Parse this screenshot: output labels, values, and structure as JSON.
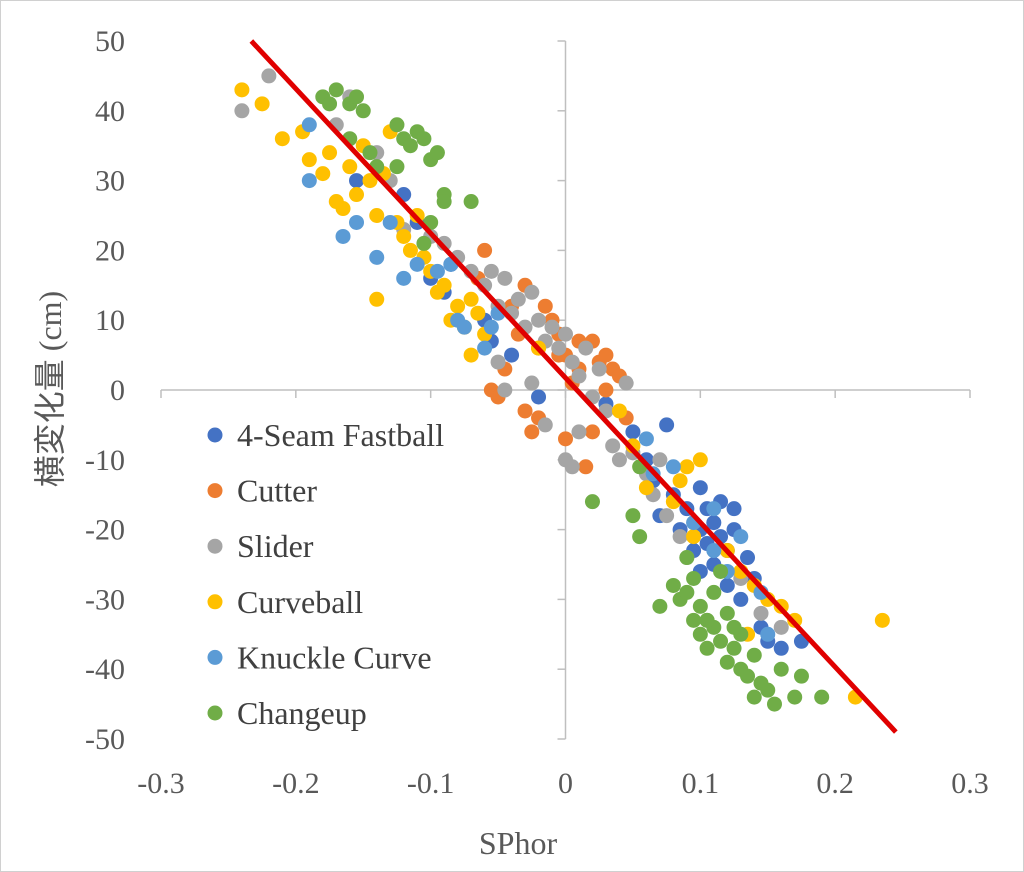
{
  "chart_data": {
    "type": "scatter",
    "xlabel": "SPhor",
    "ylabel": "横変化量 (cm)",
    "xlim": [
      -0.3,
      0.3
    ],
    "ylim": [
      -50,
      50
    ],
    "x_ticks": [
      -0.3,
      -0.2,
      -0.1,
      0,
      0.1,
      0.2,
      0.3
    ],
    "y_ticks": [
      50,
      40,
      30,
      20,
      10,
      0,
      -10,
      -20,
      -30,
      -40,
      -50
    ],
    "x_tick_labels": [
      "-0.3",
      "-0.2",
      "-0.1",
      "0",
      "0.1",
      "0.2",
      "0.3"
    ],
    "y_tick_labels": [
      "50",
      "40",
      "30",
      "20",
      "10",
      "0",
      "-10",
      "-20",
      "-30",
      "-40",
      "-50"
    ],
    "grid": false,
    "legend": {
      "placement": "lower-left"
    },
    "trendline": {
      "color": "#e00000",
      "points": [
        [
          -0.233,
          50
        ],
        [
          0.245,
          -49
        ]
      ]
    },
    "series": [
      {
        "name": "4-Seam Fastball",
        "color": "#4472c4",
        "points": [
          [
            -0.155,
            30
          ],
          [
            -0.12,
            28
          ],
          [
            -0.11,
            24
          ],
          [
            -0.1,
            16
          ],
          [
            -0.09,
            14
          ],
          [
            -0.085,
            18
          ],
          [
            -0.06,
            10
          ],
          [
            -0.055,
            7
          ],
          [
            -0.04,
            5
          ],
          [
            -0.02,
            -1
          ],
          [
            0.03,
            -2
          ],
          [
            0.05,
            -6
          ],
          [
            0.06,
            -10
          ],
          [
            0.065,
            -13
          ],
          [
            0.07,
            -18
          ],
          [
            0.075,
            -5
          ],
          [
            0.08,
            -15
          ],
          [
            0.085,
            -20
          ],
          [
            0.09,
            -17
          ],
          [
            0.095,
            -23
          ],
          [
            0.1,
            -14
          ],
          [
            0.1,
            -20
          ],
          [
            0.1,
            -26
          ],
          [
            0.105,
            -22
          ],
          [
            0.105,
            -17
          ],
          [
            0.11,
            -25
          ],
          [
            0.11,
            -19
          ],
          [
            0.115,
            -16
          ],
          [
            0.115,
            -21
          ],
          [
            0.12,
            -23
          ],
          [
            0.12,
            -28
          ],
          [
            0.125,
            -20
          ],
          [
            0.125,
            -17
          ],
          [
            0.13,
            -30
          ],
          [
            0.135,
            -24
          ],
          [
            0.14,
            -27
          ],
          [
            0.145,
            -34
          ],
          [
            0.15,
            -36
          ],
          [
            0.16,
            -37
          ],
          [
            0.175,
            -36
          ]
        ]
      },
      {
        "name": "Cutter",
        "color": "#ed7d31",
        "points": [
          [
            -0.06,
            20
          ],
          [
            -0.065,
            16
          ],
          [
            -0.055,
            0
          ],
          [
            -0.05,
            -1
          ],
          [
            -0.045,
            3
          ],
          [
            -0.04,
            12
          ],
          [
            -0.035,
            8
          ],
          [
            -0.03,
            15
          ],
          [
            -0.02,
            6
          ],
          [
            -0.015,
            12
          ],
          [
            -0.01,
            10
          ],
          [
            -0.005,
            8
          ],
          [
            -0.03,
            -3
          ],
          [
            -0.025,
            -6
          ],
          [
            0.0,
            5
          ],
          [
            0.005,
            1
          ],
          [
            0.01,
            7
          ],
          [
            0.015,
            -11
          ],
          [
            0.02,
            7
          ],
          [
            0.025,
            4
          ],
          [
            0.03,
            5
          ],
          [
            0.035,
            3
          ],
          [
            0.02,
            -6
          ],
          [
            0.0,
            -7
          ],
          [
            -0.02,
            -4
          ],
          [
            0.045,
            -4
          ],
          [
            0.03,
            0
          ],
          [
            0.01,
            3
          ],
          [
            -0.005,
            5
          ],
          [
            0.04,
            2
          ]
        ]
      },
      {
        "name": "Slider",
        "color": "#a5a5a5",
        "points": [
          [
            -0.24,
            40
          ],
          [
            -0.22,
            45
          ],
          [
            -0.17,
            38
          ],
          [
            -0.16,
            42
          ],
          [
            -0.14,
            34
          ],
          [
            -0.13,
            30
          ],
          [
            -0.12,
            23
          ],
          [
            -0.1,
            22
          ],
          [
            -0.09,
            21
          ],
          [
            -0.08,
            19
          ],
          [
            -0.07,
            17
          ],
          [
            -0.06,
            15
          ],
          [
            -0.055,
            17
          ],
          [
            -0.05,
            12
          ],
          [
            -0.045,
            16
          ],
          [
            -0.04,
            11
          ],
          [
            -0.035,
            13
          ],
          [
            -0.03,
            9
          ],
          [
            -0.025,
            14
          ],
          [
            -0.02,
            10
          ],
          [
            -0.015,
            7
          ],
          [
            -0.01,
            9
          ],
          [
            -0.005,
            6
          ],
          [
            0.0,
            8
          ],
          [
            0.005,
            4
          ],
          [
            0.01,
            2
          ],
          [
            0.015,
            6
          ],
          [
            0.02,
            -1
          ],
          [
            0.025,
            3
          ],
          [
            0.03,
            -3
          ],
          [
            0.035,
            -8
          ],
          [
            0.04,
            -10
          ],
          [
            0.045,
            1
          ],
          [
            0.05,
            -9
          ],
          [
            0.06,
            -12
          ],
          [
            0.065,
            -15
          ],
          [
            0.07,
            -10
          ],
          [
            0.075,
            -18
          ],
          [
            0.085,
            -21
          ],
          [
            0.09,
            -24
          ],
          [
            0.0,
            -10
          ],
          [
            0.005,
            -11
          ],
          [
            -0.015,
            -5
          ],
          [
            -0.045,
            0
          ],
          [
            -0.05,
            4
          ],
          [
            0.01,
            -6
          ],
          [
            0.13,
            -27
          ],
          [
            0.145,
            -32
          ],
          [
            0.16,
            -34
          ],
          [
            -0.025,
            1
          ]
        ]
      },
      {
        "name": "Curveball",
        "color": "#ffc000",
        "points": [
          [
            -0.24,
            43
          ],
          [
            -0.225,
            41
          ],
          [
            -0.21,
            36
          ],
          [
            -0.195,
            37
          ],
          [
            -0.19,
            33
          ],
          [
            -0.18,
            31
          ],
          [
            -0.175,
            34
          ],
          [
            -0.17,
            27
          ],
          [
            -0.165,
            26
          ],
          [
            -0.16,
            32
          ],
          [
            -0.155,
            28
          ],
          [
            -0.15,
            35
          ],
          [
            -0.145,
            30
          ],
          [
            -0.14,
            25
          ],
          [
            -0.135,
            31
          ],
          [
            -0.13,
            37
          ],
          [
            -0.125,
            24
          ],
          [
            -0.12,
            22
          ],
          [
            -0.115,
            20
          ],
          [
            -0.11,
            25
          ],
          [
            -0.105,
            19
          ],
          [
            -0.1,
            17
          ],
          [
            -0.095,
            14
          ],
          [
            -0.09,
            15
          ],
          [
            -0.085,
            10
          ],
          [
            -0.08,
            12
          ],
          [
            -0.075,
            9
          ],
          [
            -0.07,
            13
          ],
          [
            -0.065,
            11
          ],
          [
            -0.06,
            8
          ],
          [
            -0.14,
            13
          ],
          [
            -0.07,
            5
          ],
          [
            -0.02,
            6
          ],
          [
            0.04,
            -3
          ],
          [
            0.05,
            -8
          ],
          [
            0.06,
            -14
          ],
          [
            0.08,
            -16
          ],
          [
            0.09,
            -11
          ],
          [
            0.1,
            -10
          ],
          [
            0.085,
            -13
          ],
          [
            0.095,
            -21
          ],
          [
            0.12,
            -23
          ],
          [
            0.13,
            -26
          ],
          [
            0.14,
            -28
          ],
          [
            0.15,
            -30
          ],
          [
            0.16,
            -31
          ],
          [
            0.17,
            -33
          ],
          [
            0.135,
            -35
          ],
          [
            0.215,
            -44
          ],
          [
            0.235,
            -33
          ]
        ]
      },
      {
        "name": "Knuckle Curve",
        "color": "#5b9bd5",
        "points": [
          [
            -0.19,
            38
          ],
          [
            -0.19,
            30
          ],
          [
            -0.165,
            22
          ],
          [
            -0.155,
            24
          ],
          [
            -0.14,
            19
          ],
          [
            -0.13,
            24
          ],
          [
            -0.12,
            16
          ],
          [
            -0.11,
            18
          ],
          [
            -0.095,
            17
          ],
          [
            -0.085,
            18
          ],
          [
            -0.08,
            10
          ],
          [
            -0.075,
            9
          ],
          [
            -0.06,
            6
          ],
          [
            -0.055,
            9
          ],
          [
            -0.05,
            11
          ],
          [
            0.06,
            -7
          ],
          [
            0.08,
            -11
          ],
          [
            0.095,
            -19
          ],
          [
            0.11,
            -17
          ],
          [
            0.11,
            -23
          ],
          [
            0.12,
            -26
          ],
          [
            0.13,
            -21
          ],
          [
            0.145,
            -29
          ],
          [
            0.15,
            -35
          ],
          [
            0.065,
            -12
          ]
        ]
      },
      {
        "name": "Changeup",
        "color": "#70ad47",
        "points": [
          [
            -0.18,
            42
          ],
          [
            -0.175,
            41
          ],
          [
            -0.17,
            43
          ],
          [
            -0.16,
            41
          ],
          [
            -0.155,
            42
          ],
          [
            -0.15,
            40
          ],
          [
            -0.16,
            36
          ],
          [
            -0.145,
            34
          ],
          [
            -0.14,
            32
          ],
          [
            -0.125,
            38
          ],
          [
            -0.12,
            36
          ],
          [
            -0.115,
            35
          ],
          [
            -0.11,
            37
          ],
          [
            -0.105,
            36
          ],
          [
            -0.1,
            33
          ],
          [
            -0.095,
            34
          ],
          [
            -0.09,
            28
          ],
          [
            -0.09,
            27
          ],
          [
            -0.07,
            27
          ],
          [
            -0.1,
            24
          ],
          [
            -0.105,
            21
          ],
          [
            -0.125,
            32
          ],
          [
            0.02,
            -16
          ],
          [
            0.05,
            -18
          ],
          [
            0.055,
            -21
          ],
          [
            0.055,
            -11
          ],
          [
            0.07,
            -31
          ],
          [
            0.08,
            -28
          ],
          [
            0.085,
            -30
          ],
          [
            0.09,
            -24
          ],
          [
            0.09,
            -29
          ],
          [
            0.095,
            -33
          ],
          [
            0.095,
            -27
          ],
          [
            0.1,
            -31
          ],
          [
            0.1,
            -35
          ],
          [
            0.105,
            -33
          ],
          [
            0.105,
            -37
          ],
          [
            0.11,
            -34
          ],
          [
            0.11,
            -29
          ],
          [
            0.115,
            -26
          ],
          [
            0.115,
            -36
          ],
          [
            0.12,
            -32
          ],
          [
            0.12,
            -39
          ],
          [
            0.125,
            -37
          ],
          [
            0.13,
            -35
          ],
          [
            0.13,
            -40
          ],
          [
            0.135,
            -41
          ],
          [
            0.14,
            -38
          ],
          [
            0.14,
            -44
          ],
          [
            0.145,
            -42
          ],
          [
            0.15,
            -43
          ],
          [
            0.155,
            -45
          ],
          [
            0.16,
            -40
          ],
          [
            0.17,
            -44
          ],
          [
            0.175,
            -41
          ],
          [
            0.19,
            -44
          ],
          [
            0.125,
            -34
          ],
          [
            0.105,
            -33
          ]
        ]
      }
    ]
  }
}
